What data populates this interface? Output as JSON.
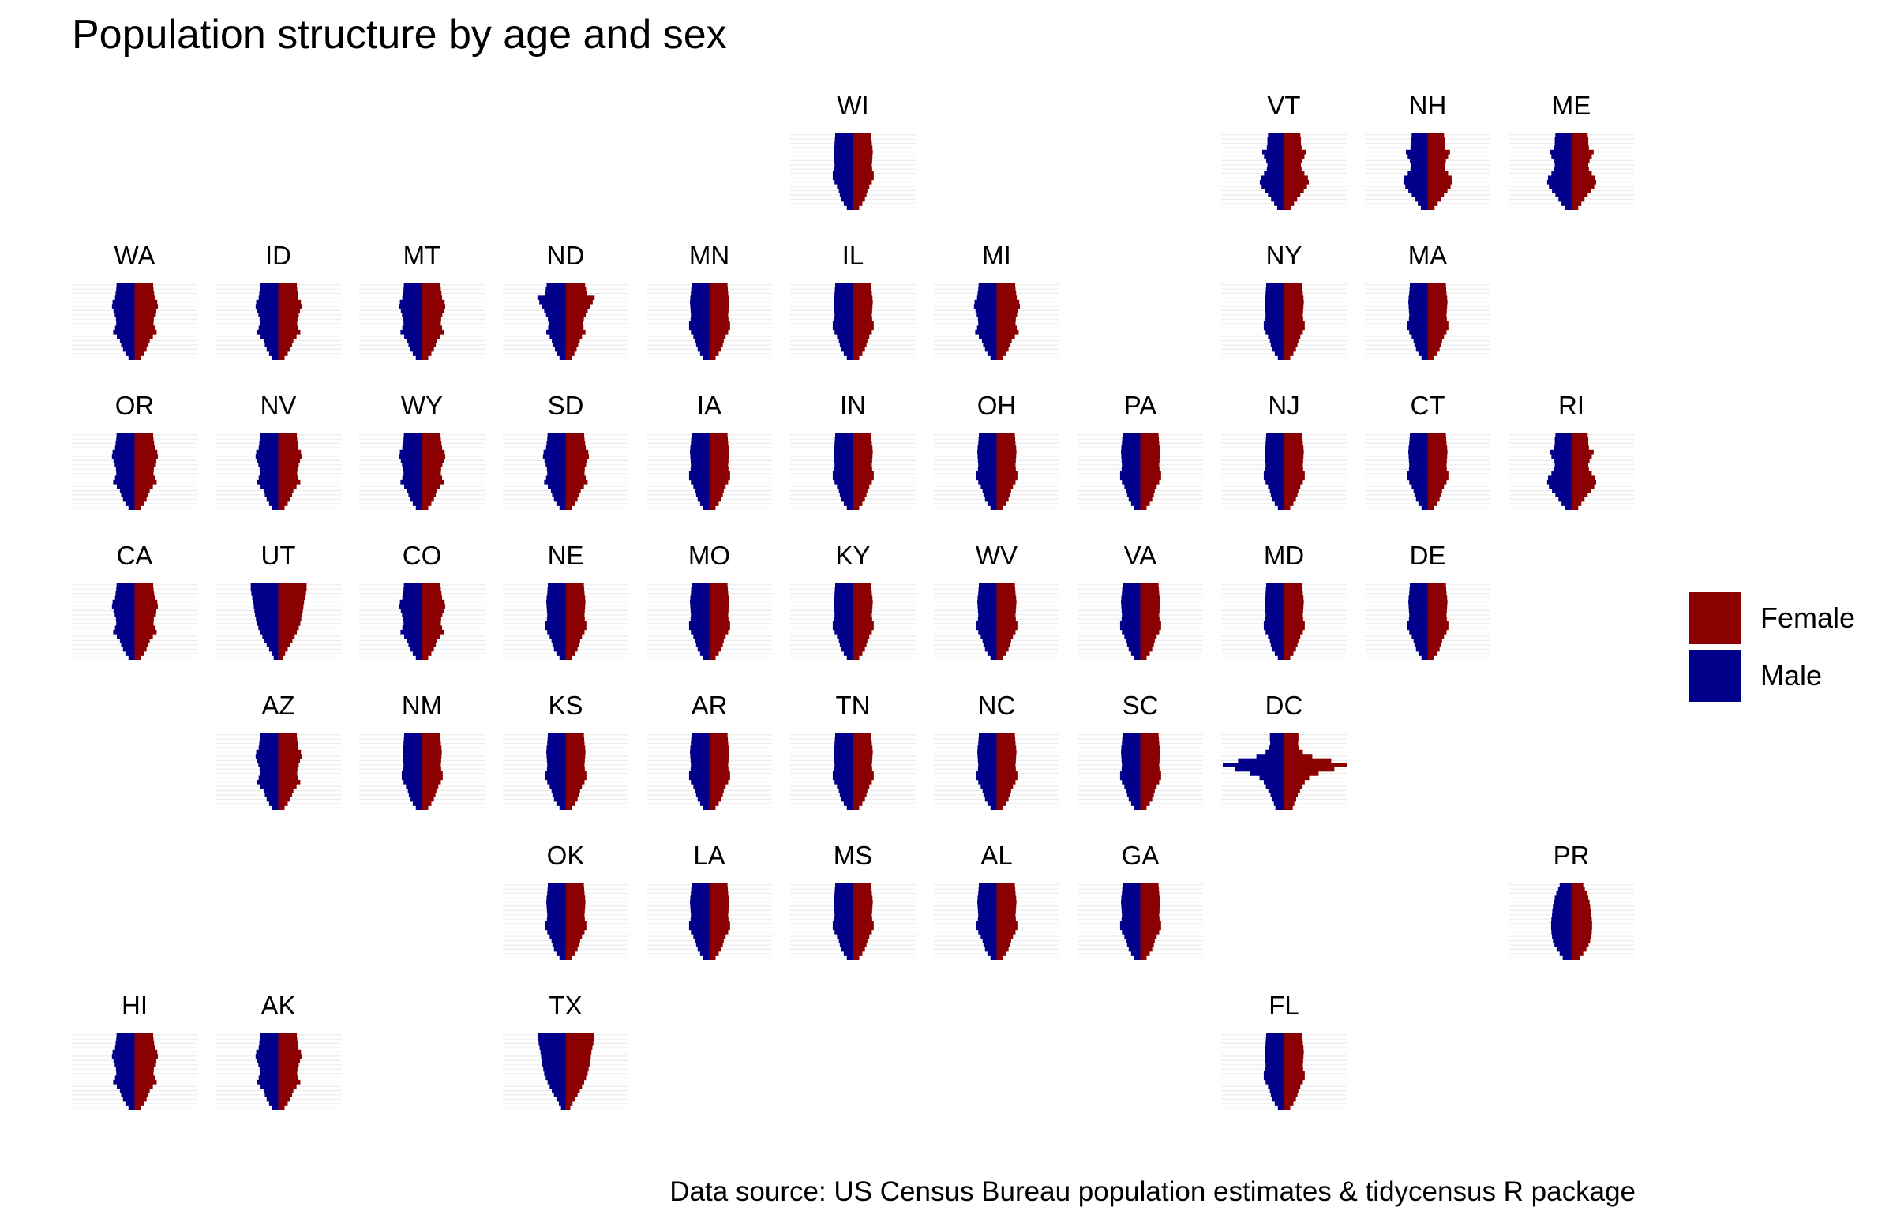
{
  "title": "Population structure by age and sex",
  "caption": "Data source: US Census Bureau population estimates & tidycensus R package",
  "colors": {
    "female": "#8B0000",
    "male": "#00008B",
    "grid": "#EBEBEB"
  },
  "legend": {
    "items": [
      {
        "label": "Female",
        "color": "#8B0000"
      },
      {
        "label": "Male",
        "color": "#00008B"
      }
    ]
  },
  "chart_data": {
    "type": "bar",
    "subtype": "population-pyramid small multiples arranged as a US state grid",
    "age_groups": 18,
    "age_order": "youngest at bottom, oldest at top",
    "note": "Bar widths are the share of each state's population in each age group (percent), estimated from the bar lengths; female bars extend to the right, male bars to the left",
    "series": [
      {
        "name": "Female",
        "color": "#8B0000"
      },
      {
        "name": "Male",
        "color": "#00008B"
      }
    ],
    "panels": [
      {
        "state": "WI",
        "row": 1,
        "col": 6,
        "profile": "old"
      },
      {
        "state": "VT",
        "row": 1,
        "col": 9,
        "profile": "bimodal"
      },
      {
        "state": "NH",
        "row": 1,
        "col": 10,
        "profile": "bimodal"
      },
      {
        "state": "ME",
        "row": 1,
        "col": 11,
        "profile": "bimodal"
      },
      {
        "state": "WA",
        "row": 2,
        "col": 1,
        "profile": "mid"
      },
      {
        "state": "ID",
        "row": 2,
        "col": 2,
        "profile": "mid"
      },
      {
        "state": "MT",
        "row": 2,
        "col": 3,
        "profile": "mid"
      },
      {
        "state": "ND",
        "row": 2,
        "col": 4,
        "profile": "college"
      },
      {
        "state": "MN",
        "row": 2,
        "col": 5,
        "profile": "old"
      },
      {
        "state": "IL",
        "row": 2,
        "col": 6,
        "profile": "old"
      },
      {
        "state": "MI",
        "row": 2,
        "col": 7,
        "profile": "mid"
      },
      {
        "state": "NY",
        "row": 2,
        "col": 9,
        "profile": "old"
      },
      {
        "state": "MA",
        "row": 2,
        "col": 10,
        "profile": "old"
      },
      {
        "state": "OR",
        "row": 3,
        "col": 1,
        "profile": "mid"
      },
      {
        "state": "NV",
        "row": 3,
        "col": 2,
        "profile": "mid"
      },
      {
        "state": "WY",
        "row": 3,
        "col": 3,
        "profile": "mid"
      },
      {
        "state": "SD",
        "row": 3,
        "col": 4,
        "profile": "mid"
      },
      {
        "state": "IA",
        "row": 3,
        "col": 5,
        "profile": "old"
      },
      {
        "state": "IN",
        "row": 3,
        "col": 6,
        "profile": "old"
      },
      {
        "state": "OH",
        "row": 3,
        "col": 7,
        "profile": "old"
      },
      {
        "state": "PA",
        "row": 3,
        "col": 8,
        "profile": "old"
      },
      {
        "state": "NJ",
        "row": 3,
        "col": 9,
        "profile": "old"
      },
      {
        "state": "CT",
        "row": 3,
        "col": 10,
        "profile": "old"
      },
      {
        "state": "RI",
        "row": 3,
        "col": 11,
        "profile": "bimodal"
      },
      {
        "state": "CA",
        "row": 4,
        "col": 1,
        "profile": "mid"
      },
      {
        "state": "UT",
        "row": 4,
        "col": 2,
        "profile": "young"
      },
      {
        "state": "CO",
        "row": 4,
        "col": 3,
        "profile": "mid"
      },
      {
        "state": "NE",
        "row": 4,
        "col": 4,
        "profile": "old"
      },
      {
        "state": "MO",
        "row": 4,
        "col": 5,
        "profile": "old"
      },
      {
        "state": "KY",
        "row": 4,
        "col": 6,
        "profile": "old"
      },
      {
        "state": "WV",
        "row": 4,
        "col": 7,
        "profile": "old"
      },
      {
        "state": "VA",
        "row": 4,
        "col": 8,
        "profile": "old"
      },
      {
        "state": "MD",
        "row": 4,
        "col": 9,
        "profile": "old"
      },
      {
        "state": "DE",
        "row": 4,
        "col": 10,
        "profile": "old"
      },
      {
        "state": "AZ",
        "row": 5,
        "col": 2,
        "profile": "mid"
      },
      {
        "state": "NM",
        "row": 5,
        "col": 3,
        "profile": "old"
      },
      {
        "state": "KS",
        "row": 5,
        "col": 4,
        "profile": "old"
      },
      {
        "state": "AR",
        "row": 5,
        "col": 5,
        "profile": "old"
      },
      {
        "state": "TN",
        "row": 5,
        "col": 6,
        "profile": "old"
      },
      {
        "state": "NC",
        "row": 5,
        "col": 7,
        "profile": "old"
      },
      {
        "state": "SC",
        "row": 5,
        "col": 8,
        "profile": "old"
      },
      {
        "state": "DC",
        "row": 5,
        "col": 9,
        "profile": "dc"
      },
      {
        "state": "OK",
        "row": 6,
        "col": 4,
        "profile": "old"
      },
      {
        "state": "LA",
        "row": 6,
        "col": 5,
        "profile": "old"
      },
      {
        "state": "MS",
        "row": 6,
        "col": 6,
        "profile": "old"
      },
      {
        "state": "AL",
        "row": 6,
        "col": 7,
        "profile": "old"
      },
      {
        "state": "GA",
        "row": 6,
        "col": 8,
        "profile": "old"
      },
      {
        "state": "PR",
        "row": 6,
        "col": 11,
        "profile": "pr"
      },
      {
        "state": "HI",
        "row": 7,
        "col": 1,
        "profile": "mid"
      },
      {
        "state": "AK",
        "row": 7,
        "col": 2,
        "profile": "mid"
      },
      {
        "state": "TX",
        "row": 7,
        "col": 4,
        "profile": "young"
      },
      {
        "state": "FL",
        "row": 7,
        "col": 9,
        "profile": "old"
      }
    ],
    "profiles": {
      "old": [
        2.0,
        3.0,
        3.8,
        4.3,
        4.6,
        5.2,
        6.0,
        6.6,
        6.6,
        6.1,
        6.0,
        6.1,
        6.2,
        6.3,
        6.2,
        6.0,
        5.9,
        5.8
      ],
      "mid": [
        2.0,
        3.0,
        3.8,
        4.4,
        4.8,
        5.8,
        7.0,
        6.4,
        6.0,
        6.1,
        6.5,
        6.9,
        7.4,
        7.2,
        6.4,
        6.2,
        6.0,
        5.9
      ],
      "bimodal": [
        2.2,
        3.2,
        4.2,
        5.2,
        6.3,
        7.3,
        7.9,
        7.6,
        6.5,
        5.6,
        5.4,
        5.8,
        6.5,
        7.1,
        5.6,
        5.4,
        5.4,
        5.2
      ],
      "college": [
        2.0,
        2.8,
        3.5,
        4.0,
        4.5,
        5.2,
        6.3,
        5.7,
        5.5,
        5.8,
        6.4,
        7.0,
        7.8,
        8.6,
        9.2,
        6.8,
        6.5,
        6.2
      ],
      "young": [
        1.5,
        2.2,
        3.0,
        3.8,
        4.5,
        5.2,
        5.9,
        6.5,
        7.0,
        7.3,
        7.6,
        7.8,
        8.0,
        8.2,
        8.5,
        8.8,
        9.0,
        9.0
      ],
      "dc": [
        2.8,
        3.3,
        3.9,
        4.4,
        5.1,
        5.9,
        6.6,
        8.0,
        11.0,
        16.0,
        20.0,
        15.0,
        9.0,
        6.0,
        4.8,
        4.5,
        4.6,
        4.6
      ],
      "pr": [
        2.8,
        3.8,
        4.8,
        5.5,
        6.0,
        6.3,
        6.5,
        6.6,
        6.6,
        6.5,
        6.3,
        6.2,
        6.0,
        5.8,
        5.4,
        4.9,
        4.3,
        3.8
      ]
    }
  }
}
